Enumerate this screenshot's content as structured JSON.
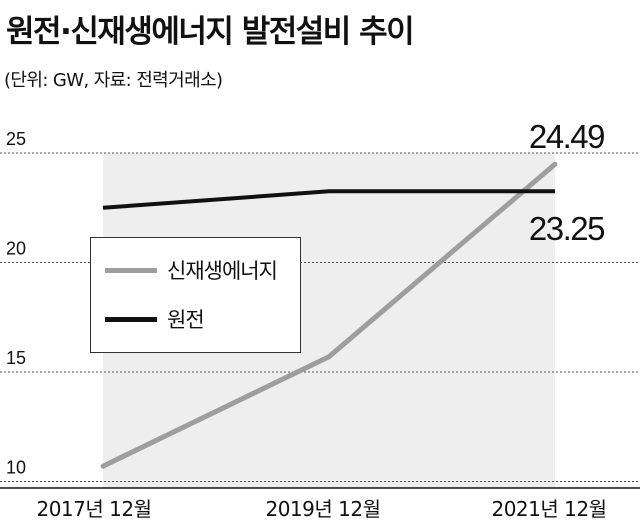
{
  "header": {
    "title": "원전·신재생에너지 발전설비 추이",
    "subtitle": "(단위: GW, 자료: 전력거래소)"
  },
  "colors": {
    "renewable": "#9e9e9e",
    "nuclear": "#111111",
    "plot_area": "#eeeeee",
    "gridline": "#555555"
  },
  "chart_data": {
    "type": "line",
    "title": "원전·신재생에너지 발전설비 추이",
    "subtitle": "(단위: GW, 자료: 전력거래소)",
    "categories": [
      "2017년 12월",
      "2019년 12월",
      "2021년 12월"
    ],
    "series": [
      {
        "name": "신재생에너지",
        "values": [
          10.7,
          15.7,
          24.49
        ],
        "color": "#9e9e9e"
      },
      {
        "name": "원전",
        "values": [
          22.5,
          23.25,
          23.25
        ],
        "color": "#111111"
      }
    ],
    "ylim": [
      9,
      26
    ],
    "yticks": [
      "25",
      "20",
      "15",
      "10"
    ],
    "grid": "horizontal-dotted",
    "legend": "center-left",
    "annotations": [
      "24.49",
      "23.25"
    ]
  }
}
